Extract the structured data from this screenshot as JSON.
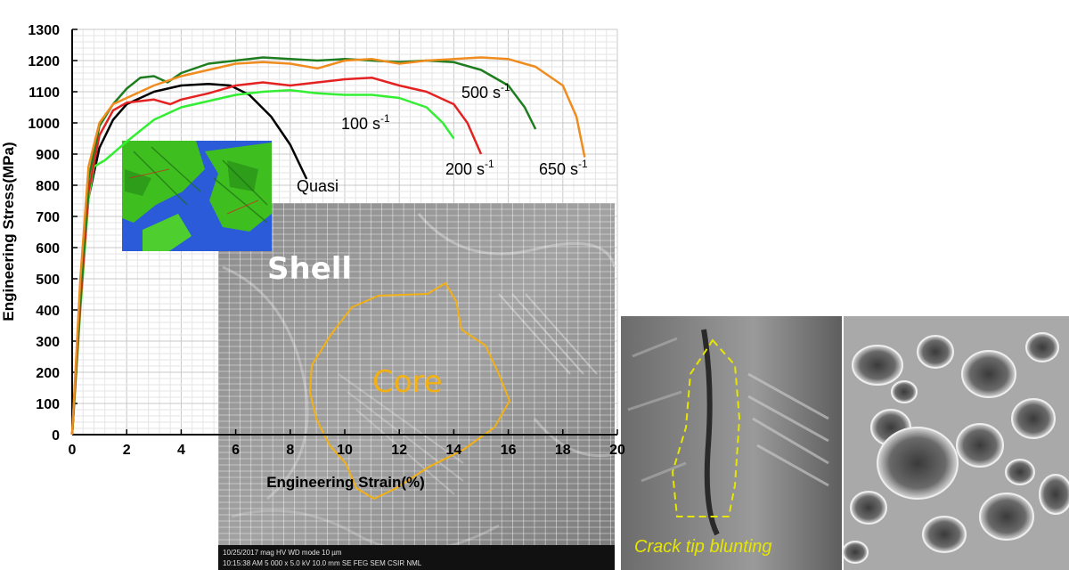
{
  "chart_data": {
    "type": "line",
    "xlabel": "Engineering Strain(%)",
    "ylabel": "Engineering Stress(MPa)",
    "xlim": [
      0,
      20
    ],
    "ylim": [
      0,
      1300
    ],
    "x_ticks": [
      "0",
      "2",
      "4",
      "6",
      "8",
      "10",
      "12",
      "14",
      "16",
      "18",
      "20"
    ],
    "y_ticks": [
      "0",
      "100",
      "200",
      "300",
      "400",
      "500",
      "600",
      "700",
      "800",
      "900",
      "1000",
      "1100",
      "1200",
      "1300"
    ],
    "grid": true,
    "series": [
      {
        "name": "Quasi",
        "color": "#000000",
        "points": [
          [
            0,
            0
          ],
          [
            0.3,
            450
          ],
          [
            0.6,
            760
          ],
          [
            1.0,
            920
          ],
          [
            1.5,
            1010
          ],
          [
            2.0,
            1060
          ],
          [
            3.0,
            1100
          ],
          [
            4.0,
            1120
          ],
          [
            5.0,
            1125
          ],
          [
            5.8,
            1120
          ],
          [
            6.5,
            1090
          ],
          [
            7.3,
            1020
          ],
          [
            8.0,
            930
          ],
          [
            8.6,
            820
          ]
        ]
      },
      {
        "name": "100 s-1",
        "color": "#33ee33",
        "points": [
          [
            0,
            0
          ],
          [
            0.3,
            400
          ],
          [
            0.6,
            760
          ],
          [
            0.8,
            860
          ],
          [
            1.2,
            880
          ],
          [
            2.0,
            940
          ],
          [
            3.0,
            1010
          ],
          [
            4.0,
            1050
          ],
          [
            5.0,
            1070
          ],
          [
            6.0,
            1090
          ],
          [
            7.0,
            1100
          ],
          [
            8.0,
            1105
          ],
          [
            9.0,
            1095
          ],
          [
            10.0,
            1090
          ],
          [
            11.0,
            1090
          ],
          [
            12.0,
            1080
          ],
          [
            13.0,
            1050
          ],
          [
            13.6,
            1000
          ],
          [
            14.0,
            950
          ]
        ]
      },
      {
        "name": "200 s-1",
        "color": "#e52222",
        "points": [
          [
            0,
            0
          ],
          [
            0.3,
            420
          ],
          [
            0.6,
            780
          ],
          [
            1.0,
            960
          ],
          [
            1.5,
            1040
          ],
          [
            2.0,
            1065
          ],
          [
            3.0,
            1075
          ],
          [
            3.6,
            1060
          ],
          [
            4.0,
            1075
          ],
          [
            5.0,
            1095
          ],
          [
            6.0,
            1120
          ],
          [
            7.0,
            1130
          ],
          [
            8.0,
            1120
          ],
          [
            9.0,
            1130
          ],
          [
            10.0,
            1140
          ],
          [
            11.0,
            1145
          ],
          [
            12.0,
            1120
          ],
          [
            13.0,
            1100
          ],
          [
            14.0,
            1060
          ],
          [
            14.5,
            1000
          ],
          [
            15.0,
            900
          ]
        ]
      },
      {
        "name": "500 s-1",
        "color": "#1e7d1e",
        "points": [
          [
            0,
            0
          ],
          [
            0.3,
            450
          ],
          [
            0.6,
            820
          ],
          [
            1.0,
            990
          ],
          [
            1.5,
            1060
          ],
          [
            2.0,
            1110
          ],
          [
            2.5,
            1145
          ],
          [
            3.0,
            1150
          ],
          [
            3.5,
            1130
          ],
          [
            4.0,
            1160
          ],
          [
            5.0,
            1190
          ],
          [
            6.0,
            1200
          ],
          [
            7.0,
            1210
          ],
          [
            8.0,
            1205
          ],
          [
            9.0,
            1200
          ],
          [
            10.0,
            1205
          ],
          [
            11.0,
            1200
          ],
          [
            12.0,
            1195
          ],
          [
            13.0,
            1200
          ],
          [
            14.0,
            1195
          ],
          [
            15.0,
            1170
          ],
          [
            16.0,
            1120
          ],
          [
            16.6,
            1050
          ],
          [
            17.0,
            980
          ]
        ]
      },
      {
        "name": "650 s-1",
        "color": "#f08c1e",
        "points": [
          [
            0,
            0
          ],
          [
            0.3,
            500
          ],
          [
            0.6,
            860
          ],
          [
            1.0,
            1000
          ],
          [
            1.5,
            1060
          ],
          [
            2.0,
            1080
          ],
          [
            3.0,
            1120
          ],
          [
            4.0,
            1150
          ],
          [
            5.0,
            1170
          ],
          [
            6.0,
            1190
          ],
          [
            7.0,
            1195
          ],
          [
            8.0,
            1190
          ],
          [
            9.0,
            1175
          ],
          [
            10.0,
            1200
          ],
          [
            11.0,
            1205
          ],
          [
            12.0,
            1190
          ],
          [
            13.0,
            1200
          ],
          [
            14.0,
            1205
          ],
          [
            15.0,
            1210
          ],
          [
            16.0,
            1205
          ],
          [
            17.0,
            1180
          ],
          [
            18.0,
            1120
          ],
          [
            18.5,
            1020
          ],
          [
            18.8,
            890
          ]
        ]
      }
    ],
    "annotations": [
      "Quasi",
      "100 s-1",
      "200 s-1",
      "500 s-1",
      "650 s-1"
    ]
  },
  "overlay_labels": {
    "shell": "Shell",
    "core": "Core",
    "crack_tip": "Crack tip blunting"
  },
  "sem_info_bar": {
    "row1": "10/25/2017 mag HV WD mode 10 µm",
    "row2": "10:15:38 AM 5 000 x 5.0 kV 10.0 mm SE FEG SEM CSIR NML"
  },
  "colors": {
    "ebsd_green": "#3fbf1f",
    "ebsd_blue": "#2b5bd9",
    "core_outline": "#f2b015",
    "crack_outline": "#e6e600"
  }
}
